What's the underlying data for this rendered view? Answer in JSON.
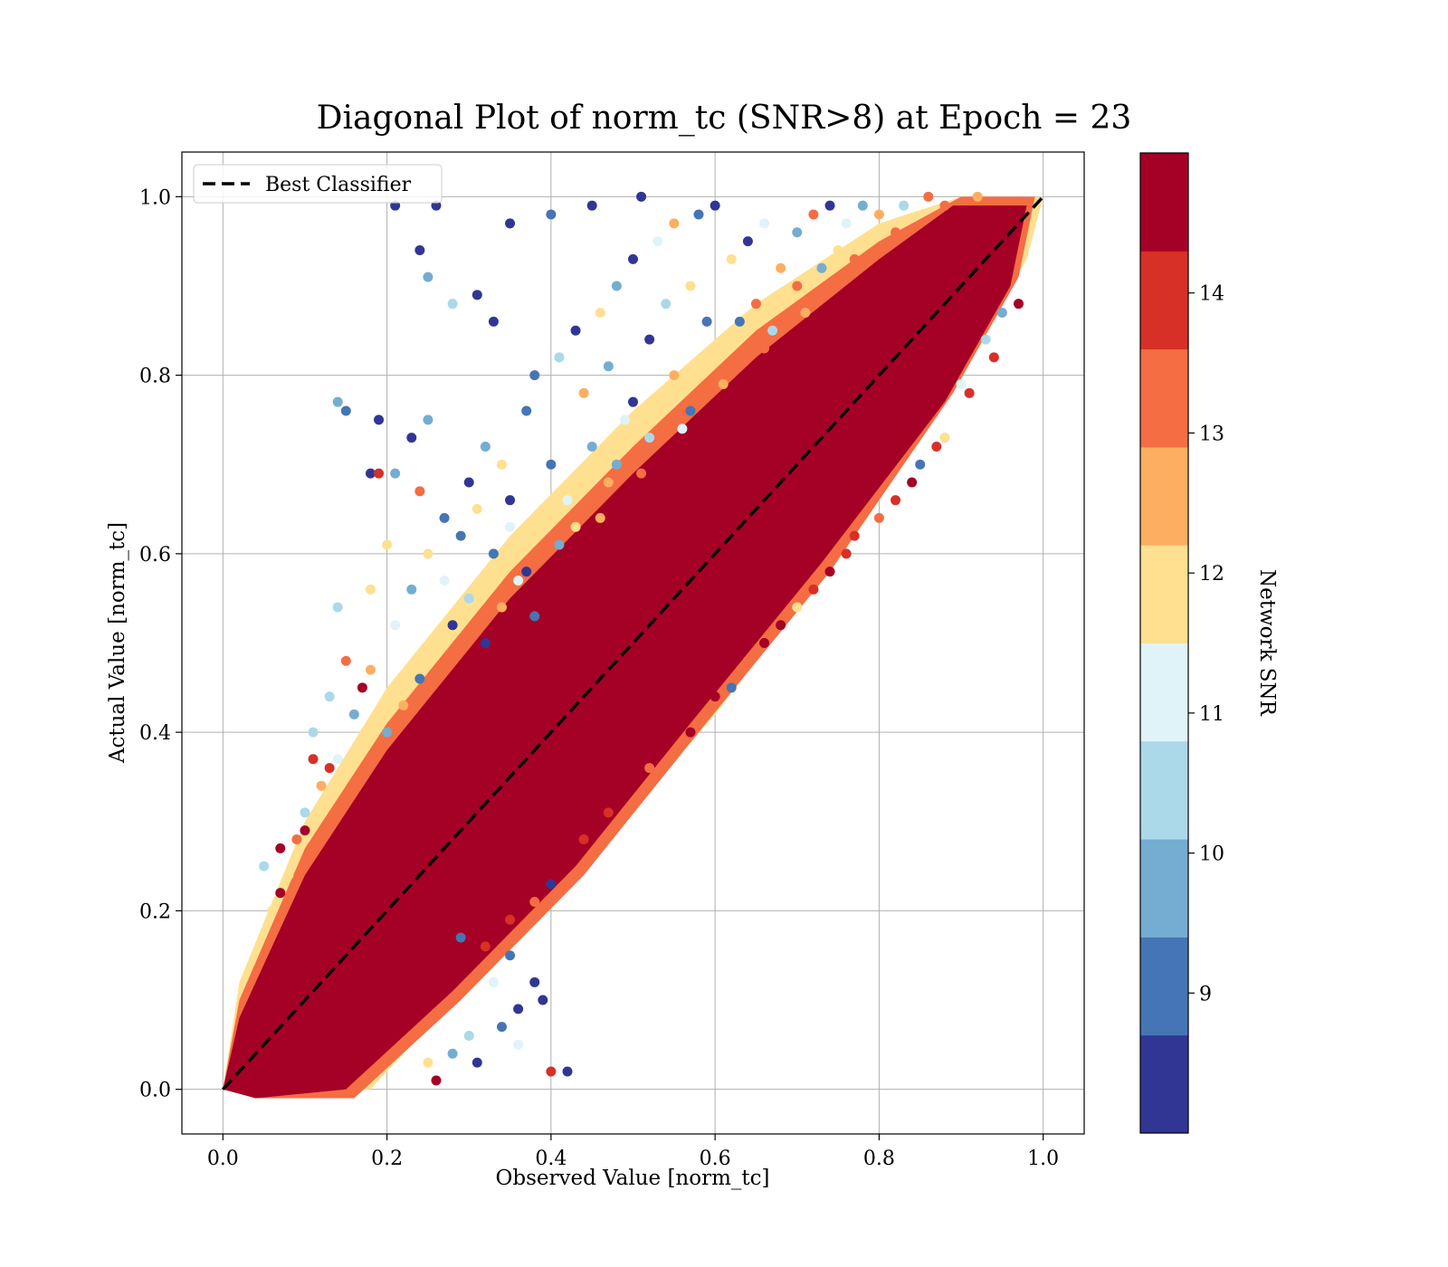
{
  "chart_data": {
    "type": "scatter",
    "title": "Diagonal Plot of norm_tc (SNR>8) at Epoch = 23",
    "xlabel": "Observed Value [norm_tc]",
    "ylabel": "Actual Value [norm_tc]",
    "xlim": [
      -0.05,
      1.05
    ],
    "ylim": [
      -0.05,
      1.05
    ],
    "xticks": [
      0.0,
      0.2,
      0.4,
      0.6,
      0.8,
      1.0
    ],
    "yticks": [
      0.0,
      0.2,
      0.4,
      0.6,
      0.8,
      1.0
    ],
    "xtick_labels": [
      "0.0",
      "0.2",
      "0.4",
      "0.6",
      "0.8",
      "1.0"
    ],
    "ytick_labels": [
      "0.0",
      "0.2",
      "0.4",
      "0.6",
      "0.8",
      "1.0"
    ],
    "grid": true,
    "legend": {
      "placement": "upper-left",
      "entries": [
        "Best Classifier"
      ]
    },
    "reference_line": {
      "name": "Best Classifier",
      "x": [
        0.0,
        1.0
      ],
      "y": [
        0.0,
        1.0
      ],
      "style": "dashed",
      "color": "#000000"
    },
    "colorbar": {
      "label": "Network SNR",
      "range": [
        8,
        15
      ],
      "ticks": [
        9,
        10,
        11,
        12,
        13,
        14
      ],
      "tick_labels": [
        "9",
        "10",
        "11",
        "12",
        "13",
        "14"
      ],
      "bins": 10,
      "colors": [
        "#313695",
        "#4575b4",
        "#74add1",
        "#abd9e9",
        "#e0f3f8",
        "#fee090",
        "#fdae61",
        "#f46d43",
        "#d73027",
        "#a50026"
      ]
    },
    "series": [
      {
        "encoding": "x, y, snr",
        "points": [
          [
            0.21,
            0.99,
            8.3
          ],
          [
            0.26,
            0.99,
            8.4
          ],
          [
            0.24,
            0.94,
            8.5
          ],
          [
            0.25,
            0.91,
            9.5
          ],
          [
            0.31,
            0.89,
            8.6
          ],
          [
            0.33,
            0.86,
            8.2
          ],
          [
            0.28,
            0.88,
            10.2
          ],
          [
            0.35,
            0.97,
            8.4
          ],
          [
            0.4,
            0.98,
            9.0
          ],
          [
            0.45,
            0.99,
            8.5
          ],
          [
            0.51,
            1.0,
            8.3
          ],
          [
            0.14,
            0.77,
            9.4
          ],
          [
            0.15,
            0.76,
            8.9
          ],
          [
            0.19,
            0.75,
            8.2
          ],
          [
            0.23,
            0.73,
            8.7
          ],
          [
            0.25,
            0.75,
            9.6
          ],
          [
            0.18,
            0.69,
            8.5
          ],
          [
            0.19,
            0.69,
            14.2
          ],
          [
            0.21,
            0.69,
            9.8
          ],
          [
            0.24,
            0.67,
            13.6
          ],
          [
            0.2,
            0.61,
            11.9
          ],
          [
            0.18,
            0.56,
            12.2
          ],
          [
            0.14,
            0.54,
            10.4
          ],
          [
            0.15,
            0.48,
            13.5
          ],
          [
            0.17,
            0.45,
            14.4
          ],
          [
            0.13,
            0.44,
            10.3
          ],
          [
            0.11,
            0.37,
            13.8
          ],
          [
            0.11,
            0.4,
            10.6
          ],
          [
            0.1,
            0.29,
            14.5
          ],
          [
            0.07,
            0.27,
            14.7
          ],
          [
            0.05,
            0.25,
            10.5
          ],
          [
            0.07,
            0.22,
            14.8
          ],
          [
            0.35,
            0.15,
            9.3
          ],
          [
            0.38,
            0.12,
            8.5
          ],
          [
            0.39,
            0.1,
            8.3
          ],
          [
            0.36,
            0.09,
            8.6
          ],
          [
            0.34,
            0.07,
            9.1
          ],
          [
            0.3,
            0.06,
            10.3
          ],
          [
            0.28,
            0.04,
            9.4
          ],
          [
            0.31,
            0.03,
            8.4
          ],
          [
            0.4,
            0.23,
            8.7
          ],
          [
            0.42,
            0.02,
            8.3
          ],
          [
            0.4,
            0.02,
            13.9
          ],
          [
            0.26,
            0.01,
            14.6
          ],
          [
            0.33,
            0.12,
            10.8
          ],
          [
            0.29,
            0.17,
            8.9
          ],
          [
            0.36,
            0.05,
            11.2
          ],
          [
            0.25,
            0.03,
            11.5
          ],
          [
            0.27,
            0.64,
            9.2
          ],
          [
            0.3,
            0.68,
            8.6
          ],
          [
            0.32,
            0.72,
            10.1
          ],
          [
            0.34,
            0.7,
            11.7
          ],
          [
            0.35,
            0.66,
            8.4
          ],
          [
            0.37,
            0.76,
            9.3
          ],
          [
            0.38,
            0.8,
            8.9
          ],
          [
            0.41,
            0.82,
            10.6
          ],
          [
            0.43,
            0.85,
            8.2
          ],
          [
            0.46,
            0.87,
            11.9
          ],
          [
            0.48,
            0.9,
            9.5
          ],
          [
            0.5,
            0.93,
            8.7
          ],
          [
            0.53,
            0.95,
            10.8
          ],
          [
            0.55,
            0.97,
            12.4
          ],
          [
            0.58,
            0.98,
            9.1
          ],
          [
            0.6,
            0.99,
            8.5
          ],
          [
            0.44,
            0.78,
            12.7
          ],
          [
            0.47,
            0.81,
            9.8
          ],
          [
            0.49,
            0.75,
            11.3
          ],
          [
            0.52,
            0.84,
            8.4
          ],
          [
            0.54,
            0.88,
            10.4
          ],
          [
            0.57,
            0.9,
            12.1
          ],
          [
            0.59,
            0.86,
            9.2
          ],
          [
            0.62,
            0.93,
            11.6
          ],
          [
            0.64,
            0.95,
            8.6
          ],
          [
            0.66,
            0.97,
            10.9
          ],
          [
            0.68,
            0.92,
            12.5
          ],
          [
            0.7,
            0.96,
            9.4
          ],
          [
            0.72,
            0.98,
            13.1
          ],
          [
            0.74,
            0.99,
            8.3
          ],
          [
            0.76,
            0.97,
            11.1
          ],
          [
            0.78,
            0.99,
            9.7
          ],
          [
            0.8,
            0.98,
            12.8
          ],
          [
            0.83,
            0.99,
            10.2
          ],
          [
            0.86,
            1.0,
            13.3
          ],
          [
            0.4,
            0.7,
            8.8
          ],
          [
            0.42,
            0.66,
            11.4
          ],
          [
            0.45,
            0.72,
            9.9
          ],
          [
            0.47,
            0.68,
            12.3
          ],
          [
            0.5,
            0.77,
            8.5
          ],
          [
            0.52,
            0.73,
            10.7
          ],
          [
            0.55,
            0.8,
            12.6
          ],
          [
            0.57,
            0.76,
            9.3
          ],
          [
            0.6,
            0.83,
            11.8
          ],
          [
            0.63,
            0.86,
            8.9
          ],
          [
            0.65,
            0.88,
            12.9
          ],
          [
            0.67,
            0.85,
            10.3
          ],
          [
            0.7,
            0.9,
            13.2
          ],
          [
            0.73,
            0.92,
            9.6
          ],
          [
            0.75,
            0.94,
            12.2
          ],
          [
            0.33,
            0.6,
            9.1
          ],
          [
            0.35,
            0.63,
            11.0
          ],
          [
            0.37,
            0.58,
            8.6
          ],
          [
            0.39,
            0.65,
            12.0
          ],
          [
            0.41,
            0.61,
            9.7
          ],
          [
            0.3,
            0.55,
            10.5
          ],
          [
            0.28,
            0.52,
            8.4
          ],
          [
            0.26,
            0.49,
            11.6
          ],
          [
            0.24,
            0.46,
            9.2
          ],
          [
            0.22,
            0.43,
            12.3
          ],
          [
            0.2,
            0.4,
            10.0
          ],
          [
            0.32,
            0.5,
            8.7
          ],
          [
            0.34,
            0.54,
            12.4
          ],
          [
            0.36,
            0.57,
            10.8
          ],
          [
            0.38,
            0.53,
            9.3
          ],
          [
            0.43,
            0.63,
            11.9
          ],
          [
            0.46,
            0.64,
            12.7
          ],
          [
            0.48,
            0.7,
            10.1
          ],
          [
            0.51,
            0.69,
            13.0
          ],
          [
            0.56,
            0.74,
            11.2
          ],
          [
            0.61,
            0.79,
            12.8
          ],
          [
            0.66,
            0.83,
            13.4
          ],
          [
            0.71,
            0.87,
            12.5
          ],
          [
            0.77,
            0.93,
            13.6
          ],
          [
            0.82,
            0.96,
            12.9
          ],
          [
            0.88,
            0.99,
            13.5
          ],
          [
            0.92,
            1.0,
            12.6
          ],
          [
            0.93,
            0.84,
            10.4
          ],
          [
            0.95,
            0.87,
            9.8
          ],
          [
            0.9,
            0.79,
            11.3
          ],
          [
            0.88,
            0.73,
            12.1
          ],
          [
            0.85,
            0.7,
            8.8
          ],
          [
            0.82,
            0.66,
            14.1
          ],
          [
            0.77,
            0.62,
            13.7
          ],
          [
            0.74,
            0.58,
            14.3
          ],
          [
            0.7,
            0.54,
            12.2
          ],
          [
            0.66,
            0.5,
            14.6
          ],
          [
            0.62,
            0.45,
            8.9
          ],
          [
            0.57,
            0.4,
            14.4
          ],
          [
            0.52,
            0.36,
            13.3
          ],
          [
            0.47,
            0.31,
            14.2
          ],
          [
            0.44,
            0.28,
            13.9
          ],
          [
            0.41,
            0.25,
            14.5
          ],
          [
            0.38,
            0.21,
            13.4
          ],
          [
            0.35,
            0.19,
            14.1
          ],
          [
            0.32,
            0.16,
            13.7
          ],
          [
            0.6,
            0.44,
            14.3
          ],
          [
            0.64,
            0.48,
            13.5
          ],
          [
            0.68,
            0.52,
            14.4
          ],
          [
            0.72,
            0.56,
            13.8
          ],
          [
            0.76,
            0.6,
            14.2
          ],
          [
            0.8,
            0.64,
            13.6
          ],
          [
            0.84,
            0.68,
            14.5
          ],
          [
            0.87,
            0.72,
            13.9
          ],
          [
            0.91,
            0.78,
            14.1
          ],
          [
            0.94,
            0.82,
            13.7
          ],
          [
            0.97,
            0.88,
            14.3
          ],
          [
            0.1,
            0.31,
            10.2
          ],
          [
            0.12,
            0.34,
            12.5
          ],
          [
            0.14,
            0.37,
            11.2
          ],
          [
            0.16,
            0.42,
            9.4
          ],
          [
            0.08,
            0.24,
            12.0
          ],
          [
            0.06,
            0.2,
            11.5
          ],
          [
            0.09,
            0.28,
            13.4
          ],
          [
            0.13,
            0.36,
            13.8
          ],
          [
            0.18,
            0.47,
            12.8
          ],
          [
            0.21,
            0.52,
            11.4
          ],
          [
            0.23,
            0.56,
            9.6
          ],
          [
            0.25,
            0.6,
            12.1
          ],
          [
            0.27,
            0.57,
            10.9
          ],
          [
            0.29,
            0.62,
            9.3
          ],
          [
            0.31,
            0.65,
            11.8
          ]
        ]
      }
    ]
  }
}
